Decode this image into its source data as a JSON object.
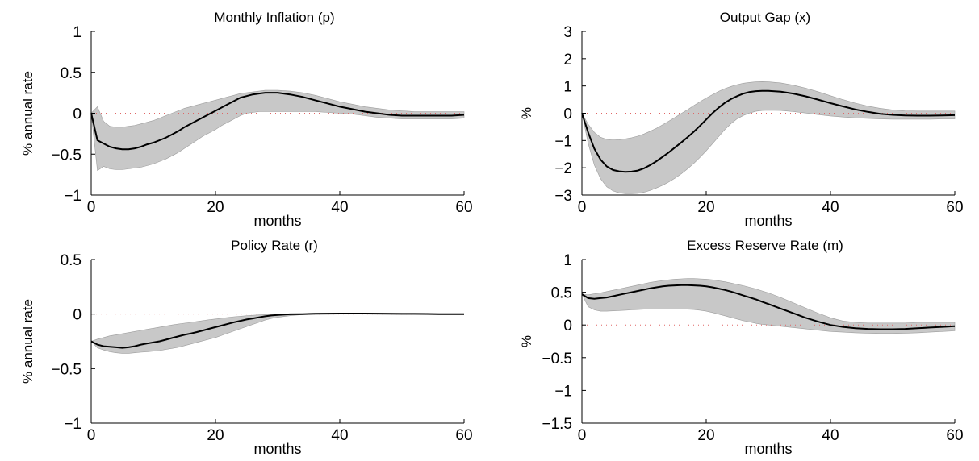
{
  "colors": {
    "band": "#c8c8c8",
    "band_edge": "#9e9e9e",
    "line": "#000000",
    "zero_line": "#e06666",
    "axis": "#000000"
  },
  "chart_data": [
    {
      "type": "area",
      "title": "Monthly Inflation (p)",
      "xlabel": "months",
      "ylabel": "% annual rate",
      "xlim": [
        0,
        60
      ],
      "ylim": [
        -1,
        1
      ],
      "xticks": [
        "0",
        "20",
        "40",
        "60"
      ],
      "yticks": [
        "1",
        "0.5",
        "0",
        "−0.5",
        "−1"
      ],
      "ytick_values": [
        1,
        0.5,
        0,
        -0.5,
        -1
      ],
      "grid": false,
      "x": [
        0,
        1,
        2,
        3,
        4,
        5,
        6,
        7,
        8,
        9,
        10,
        11,
        12,
        13,
        14,
        15,
        16,
        17,
        18,
        19,
        20,
        21,
        22,
        23,
        24,
        25,
        26,
        27,
        28,
        29,
        30,
        32,
        34,
        36,
        38,
        40,
        42,
        44,
        46,
        48,
        50,
        52,
        54,
        56,
        58,
        60
      ],
      "series": [
        {
          "values": [
            0.0,
            -0.33,
            -0.37,
            -0.41,
            -0.43,
            -0.44,
            -0.44,
            -0.43,
            -0.41,
            -0.38,
            -0.36,
            -0.33,
            -0.3,
            -0.26,
            -0.22,
            -0.17,
            -0.13,
            -0.09,
            -0.05,
            -0.01,
            0.03,
            0.07,
            0.11,
            0.15,
            0.19,
            0.21,
            0.23,
            0.24,
            0.25,
            0.25,
            0.25,
            0.23,
            0.2,
            0.16,
            0.12,
            0.08,
            0.05,
            0.02,
            0.0,
            -0.02,
            -0.03,
            -0.03,
            -0.03,
            -0.03,
            -0.03,
            -0.02
          ]
        },
        {
          "role": "upper band",
          "values": [
            0.0,
            0.08,
            -0.1,
            -0.16,
            -0.17,
            -0.17,
            -0.16,
            -0.15,
            -0.13,
            -0.11,
            -0.09,
            -0.06,
            -0.03,
            0.0,
            0.03,
            0.06,
            0.08,
            0.1,
            0.12,
            0.14,
            0.16,
            0.18,
            0.2,
            0.22,
            0.24,
            0.25,
            0.26,
            0.27,
            0.28,
            0.28,
            0.28,
            0.27,
            0.25,
            0.22,
            0.18,
            0.14,
            0.11,
            0.08,
            0.06,
            0.04,
            0.03,
            0.02,
            0.02,
            0.02,
            0.02,
            0.02
          ]
        },
        {
          "role": "lower band",
          "values": [
            0.0,
            -0.7,
            -0.65,
            -0.68,
            -0.69,
            -0.69,
            -0.68,
            -0.67,
            -0.66,
            -0.64,
            -0.62,
            -0.59,
            -0.56,
            -0.52,
            -0.48,
            -0.43,
            -0.38,
            -0.33,
            -0.28,
            -0.24,
            -0.2,
            -0.15,
            -0.11,
            -0.07,
            -0.03,
            0.0,
            0.01,
            0.02,
            0.02,
            0.02,
            0.02,
            0.02,
            0.02,
            0.02,
            0.01,
            0.0,
            -0.01,
            -0.03,
            -0.05,
            -0.06,
            -0.07,
            -0.07,
            -0.07,
            -0.07,
            -0.07,
            -0.06
          ]
        }
      ]
    },
    {
      "type": "area",
      "title": "Output Gap (x)",
      "xlabel": "months",
      "ylabel": "%",
      "xlim": [
        0,
        60
      ],
      "ylim": [
        -3,
        3
      ],
      "xticks": [
        "0",
        "20",
        "40",
        "60"
      ],
      "yticks": [
        "3",
        "2",
        "1",
        "0",
        "−1",
        "−2",
        "−3"
      ],
      "ytick_values": [
        3,
        2,
        1,
        0,
        -1,
        -2,
        -3
      ],
      "grid": false,
      "x": [
        0,
        1,
        2,
        3,
        4,
        5,
        6,
        7,
        8,
        9,
        10,
        11,
        12,
        13,
        14,
        15,
        16,
        17,
        18,
        19,
        20,
        21,
        22,
        23,
        24,
        25,
        26,
        27,
        28,
        29,
        30,
        32,
        34,
        36,
        38,
        40,
        42,
        44,
        46,
        48,
        50,
        52,
        54,
        56,
        58,
        60
      ],
      "series": [
        {
          "values": [
            0.0,
            -0.7,
            -1.3,
            -1.7,
            -1.95,
            -2.08,
            -2.13,
            -2.15,
            -2.14,
            -2.1,
            -2.02,
            -1.9,
            -1.76,
            -1.6,
            -1.43,
            -1.25,
            -1.07,
            -0.88,
            -0.68,
            -0.46,
            -0.23,
            0.0,
            0.2,
            0.38,
            0.52,
            0.63,
            0.72,
            0.78,
            0.81,
            0.82,
            0.82,
            0.79,
            0.72,
            0.62,
            0.5,
            0.37,
            0.25,
            0.14,
            0.05,
            -0.02,
            -0.06,
            -0.08,
            -0.09,
            -0.09,
            -0.08,
            -0.07
          ]
        },
        {
          "role": "upper band",
          "values": [
            0.0,
            -0.4,
            -0.7,
            -0.88,
            -0.96,
            -0.98,
            -0.97,
            -0.94,
            -0.9,
            -0.84,
            -0.76,
            -0.66,
            -0.55,
            -0.42,
            -0.29,
            -0.15,
            -0.01,
            0.13,
            0.28,
            0.42,
            0.56,
            0.68,
            0.8,
            0.9,
            0.98,
            1.05,
            1.1,
            1.13,
            1.15,
            1.16,
            1.15,
            1.11,
            1.03,
            0.92,
            0.79,
            0.64,
            0.5,
            0.37,
            0.26,
            0.18,
            0.12,
            0.09,
            0.08,
            0.08,
            0.08,
            0.08
          ]
        },
        {
          "role": "lower band",
          "values": [
            0.0,
            -1.1,
            -1.9,
            -2.4,
            -2.7,
            -2.85,
            -2.92,
            -2.95,
            -2.95,
            -2.94,
            -2.9,
            -2.83,
            -2.74,
            -2.64,
            -2.52,
            -2.38,
            -2.22,
            -2.04,
            -1.84,
            -1.62,
            -1.38,
            -1.12,
            -0.86,
            -0.6,
            -0.38,
            -0.2,
            -0.08,
            0.01,
            0.07,
            0.1,
            0.11,
            0.1,
            0.06,
            0.01,
            -0.05,
            -0.1,
            -0.14,
            -0.17,
            -0.19,
            -0.21,
            -0.22,
            -0.22,
            -0.22,
            -0.22,
            -0.21,
            -0.21
          ]
        }
      ]
    },
    {
      "type": "area",
      "title": "Policy Rate (r)",
      "xlabel": "months",
      "ylabel": "% annual rate",
      "xlim": [
        0,
        60
      ],
      "ylim": [
        -1,
        0.5
      ],
      "xticks": [
        "0",
        "20",
        "40",
        "60"
      ],
      "yticks": [
        "0.5",
        "0",
        "−0.5",
        "−1"
      ],
      "ytick_values": [
        0.5,
        0,
        -0.5,
        -1
      ],
      "grid": false,
      "x": [
        0,
        1,
        2,
        3,
        4,
        5,
        6,
        7,
        8,
        9,
        10,
        11,
        12,
        13,
        14,
        15,
        16,
        17,
        18,
        19,
        20,
        21,
        22,
        23,
        24,
        25,
        26,
        27,
        28,
        29,
        30,
        32,
        34,
        36,
        38,
        40,
        42,
        44,
        46,
        48,
        50,
        52,
        54,
        56,
        58,
        60
      ],
      "series": [
        {
          "values": [
            -0.25,
            -0.28,
            -0.295,
            -0.3,
            -0.305,
            -0.31,
            -0.305,
            -0.295,
            -0.28,
            -0.27,
            -0.26,
            -0.25,
            -0.235,
            -0.22,
            -0.205,
            -0.19,
            -0.178,
            -0.165,
            -0.15,
            -0.135,
            -0.12,
            -0.105,
            -0.09,
            -0.075,
            -0.062,
            -0.05,
            -0.04,
            -0.03,
            -0.02,
            -0.013,
            -0.008,
            -0.002,
            0.0,
            0.003,
            0.004,
            0.005,
            0.005,
            0.005,
            0.004,
            0.003,
            0.002,
            0.002,
            0.001,
            0.0,
            0.0,
            0.0
          ]
        },
        {
          "role": "upper band",
          "values": [
            -0.25,
            -0.23,
            -0.215,
            -0.2,
            -0.19,
            -0.18,
            -0.17,
            -0.16,
            -0.15,
            -0.14,
            -0.13,
            -0.12,
            -0.11,
            -0.1,
            -0.092,
            -0.084,
            -0.076,
            -0.068,
            -0.06,
            -0.052,
            -0.045,
            -0.038,
            -0.031,
            -0.025,
            -0.02,
            -0.015,
            -0.011,
            -0.008,
            -0.005,
            -0.003,
            -0.002,
            0.0,
            0.002,
            0.004,
            0.005,
            0.006,
            0.006,
            0.006,
            0.005,
            0.004,
            0.003,
            0.002,
            0.001,
            0.001,
            0.0,
            0.0
          ]
        },
        {
          "role": "lower band",
          "values": [
            -0.25,
            -0.31,
            -0.33,
            -0.345,
            -0.355,
            -0.36,
            -0.36,
            -0.355,
            -0.35,
            -0.345,
            -0.34,
            -0.335,
            -0.325,
            -0.315,
            -0.305,
            -0.29,
            -0.275,
            -0.26,
            -0.245,
            -0.23,
            -0.215,
            -0.195,
            -0.175,
            -0.155,
            -0.135,
            -0.115,
            -0.095,
            -0.075,
            -0.055,
            -0.04,
            -0.03,
            -0.015,
            -0.005,
            0.0,
            0.002,
            0.003,
            0.003,
            0.003,
            0.003,
            0.002,
            0.001,
            0.001,
            0.0,
            0.0,
            0.0,
            0.0
          ]
        }
      ]
    },
    {
      "type": "area",
      "title": "Excess Reserve Rate (m)",
      "xlabel": "months",
      "ylabel": "%",
      "xlim": [
        0,
        60
      ],
      "ylim": [
        -1.5,
        1
      ],
      "xticks": [
        "0",
        "20",
        "40",
        "60"
      ],
      "yticks": [
        "1",
        "0.5",
        "0",
        "−0.5",
        "−1",
        "−1.5"
      ],
      "ytick_values": [
        1,
        0.5,
        0,
        -0.5,
        -1,
        -1.5
      ],
      "grid": false,
      "x": [
        0,
        1,
        2,
        3,
        4,
        5,
        6,
        7,
        8,
        9,
        10,
        11,
        12,
        13,
        14,
        15,
        16,
        17,
        18,
        19,
        20,
        21,
        22,
        23,
        24,
        25,
        26,
        27,
        28,
        29,
        30,
        32,
        34,
        36,
        38,
        40,
        42,
        44,
        46,
        48,
        50,
        52,
        54,
        56,
        58,
        60
      ],
      "series": [
        {
          "values": [
            0.47,
            0.41,
            0.4,
            0.41,
            0.42,
            0.44,
            0.46,
            0.48,
            0.5,
            0.52,
            0.54,
            0.56,
            0.575,
            0.59,
            0.6,
            0.605,
            0.61,
            0.61,
            0.605,
            0.6,
            0.59,
            0.575,
            0.555,
            0.535,
            0.51,
            0.48,
            0.45,
            0.42,
            0.39,
            0.355,
            0.32,
            0.25,
            0.18,
            0.11,
            0.05,
            0.0,
            -0.03,
            -0.05,
            -0.06,
            -0.065,
            -0.065,
            -0.06,
            -0.05,
            -0.04,
            -0.03,
            -0.02
          ]
        },
        {
          "role": "upper band",
          "values": [
            0.47,
            0.46,
            0.475,
            0.49,
            0.51,
            0.53,
            0.55,
            0.57,
            0.59,
            0.61,
            0.63,
            0.65,
            0.665,
            0.68,
            0.69,
            0.7,
            0.705,
            0.71,
            0.71,
            0.705,
            0.7,
            0.69,
            0.675,
            0.66,
            0.64,
            0.62,
            0.6,
            0.575,
            0.55,
            0.52,
            0.49,
            0.42,
            0.34,
            0.26,
            0.18,
            0.11,
            0.06,
            0.04,
            0.03,
            0.03,
            0.03,
            0.03,
            0.04,
            0.04,
            0.04,
            0.04
          ]
        },
        {
          "role": "lower band",
          "values": [
            0.47,
            0.28,
            0.23,
            0.21,
            0.21,
            0.215,
            0.22,
            0.225,
            0.23,
            0.235,
            0.24,
            0.245,
            0.245,
            0.245,
            0.245,
            0.245,
            0.245,
            0.24,
            0.235,
            0.225,
            0.21,
            0.19,
            0.165,
            0.14,
            0.115,
            0.09,
            0.065,
            0.045,
            0.025,
            0.01,
            0.0,
            -0.02,
            -0.04,
            -0.06,
            -0.08,
            -0.1,
            -0.11,
            -0.12,
            -0.125,
            -0.13,
            -0.13,
            -0.125,
            -0.12,
            -0.11,
            -0.1,
            -0.09
          ]
        }
      ]
    }
  ]
}
